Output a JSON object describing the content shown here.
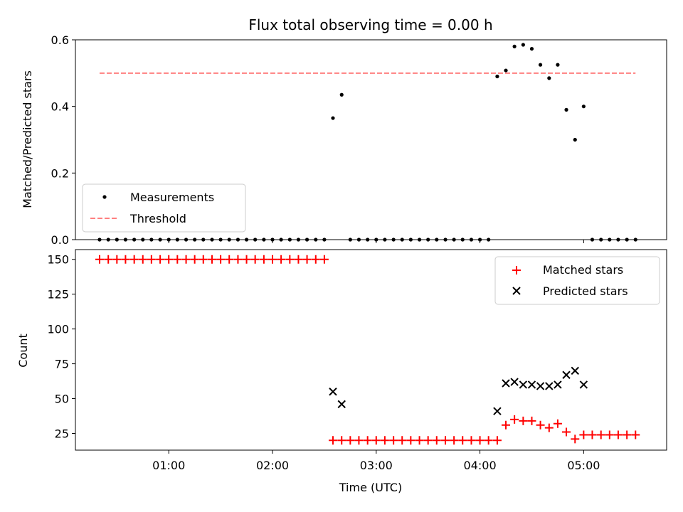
{
  "chart_data": [
    {
      "type": "scatter",
      "title": "Flux total observing time = 0.00 h",
      "xlabel": "",
      "ylabel": "Matched/Predicted stars",
      "xlim": [
        0.1,
        5.8
      ],
      "ylim": [
        0,
        0.6
      ],
      "yticks": [
        0,
        0.2,
        0.4,
        0.6
      ],
      "ytick_labels": [
        "0.0",
        "0.2",
        "0.4",
        "0.6"
      ],
      "xticks": [
        1,
        2,
        3,
        4,
        5
      ],
      "legend": {
        "position": "bottom-left"
      },
      "threshold": {
        "name": "Threshold",
        "value": 0.5,
        "x_range": [
          0.333,
          5.5
        ],
        "color": "#ff7f7f"
      },
      "series": [
        {
          "name": "Measurements",
          "color": "#000000",
          "points": [
            [
              0.333,
              0
            ],
            [
              0.417,
              0
            ],
            [
              0.5,
              0
            ],
            [
              0.583,
              0
            ],
            [
              0.667,
              0
            ],
            [
              0.75,
              0
            ],
            [
              0.833,
              0
            ],
            [
              0.917,
              0
            ],
            [
              1.0,
              0
            ],
            [
              1.083,
              0
            ],
            [
              1.167,
              0
            ],
            [
              1.25,
              0
            ],
            [
              1.333,
              0
            ],
            [
              1.417,
              0
            ],
            [
              1.5,
              0
            ],
            [
              1.583,
              0
            ],
            [
              1.667,
              0
            ],
            [
              1.75,
              0
            ],
            [
              1.833,
              0
            ],
            [
              1.917,
              0
            ],
            [
              2.0,
              0
            ],
            [
              2.083,
              0
            ],
            [
              2.167,
              0
            ],
            [
              2.25,
              0
            ],
            [
              2.333,
              0
            ],
            [
              2.417,
              0
            ],
            [
              2.5,
              0
            ],
            [
              2.583,
              0.365
            ],
            [
              2.667,
              0.435
            ],
            [
              2.75,
              0
            ],
            [
              2.833,
              0
            ],
            [
              2.917,
              0
            ],
            [
              3.0,
              0
            ],
            [
              3.083,
              0
            ],
            [
              3.167,
              0
            ],
            [
              3.25,
              0
            ],
            [
              3.333,
              0
            ],
            [
              3.417,
              0
            ],
            [
              3.5,
              0
            ],
            [
              3.583,
              0
            ],
            [
              3.667,
              0
            ],
            [
              3.75,
              0
            ],
            [
              3.833,
              0
            ],
            [
              3.917,
              0
            ],
            [
              4.0,
              0
            ],
            [
              4.083,
              0
            ],
            [
              4.167,
              0.49
            ],
            [
              4.25,
              0.508
            ],
            [
              4.333,
              0.58
            ],
            [
              4.417,
              0.585
            ],
            [
              4.5,
              0.573
            ],
            [
              4.583,
              0.525
            ],
            [
              4.667,
              0.485
            ],
            [
              4.75,
              0.525
            ],
            [
              4.833,
              0.39
            ],
            [
              4.917,
              0.3
            ],
            [
              5.0,
              0.4
            ],
            [
              5.083,
              0
            ],
            [
              5.167,
              0
            ],
            [
              5.25,
              0
            ],
            [
              5.333,
              0
            ],
            [
              5.417,
              0
            ],
            [
              5.5,
              0
            ]
          ]
        }
      ]
    },
    {
      "type": "scatter",
      "title": "",
      "xlabel": "Time (UTC)",
      "ylabel": "Count",
      "xlim": [
        0.1,
        5.8
      ],
      "ylim": [
        13,
        157
      ],
      "yticks": [
        25,
        50,
        75,
        100,
        125,
        150
      ],
      "ytick_labels": [
        "25",
        "50",
        "75",
        "100",
        "125",
        "150"
      ],
      "xticks": [
        1,
        2,
        3,
        4,
        5
      ],
      "xtick_labels": [
        "01:00",
        "02:00",
        "03:00",
        "04:00",
        "05:00"
      ],
      "legend": {
        "position": "top-right"
      },
      "series": [
        {
          "name": "Matched stars",
          "marker": "plus",
          "color": "#ff0000",
          "points": [
            [
              0.333,
              150
            ],
            [
              0.417,
              150
            ],
            [
              0.5,
              150
            ],
            [
              0.583,
              150
            ],
            [
              0.667,
              150
            ],
            [
              0.75,
              150
            ],
            [
              0.833,
              150
            ],
            [
              0.917,
              150
            ],
            [
              1.0,
              150
            ],
            [
              1.083,
              150
            ],
            [
              1.167,
              150
            ],
            [
              1.25,
              150
            ],
            [
              1.333,
              150
            ],
            [
              1.417,
              150
            ],
            [
              1.5,
              150
            ],
            [
              1.583,
              150
            ],
            [
              1.667,
              150
            ],
            [
              1.75,
              150
            ],
            [
              1.833,
              150
            ],
            [
              1.917,
              150
            ],
            [
              2.0,
              150
            ],
            [
              2.083,
              150
            ],
            [
              2.167,
              150
            ],
            [
              2.25,
              150
            ],
            [
              2.333,
              150
            ],
            [
              2.417,
              150
            ],
            [
              2.5,
              150
            ],
            [
              2.583,
              20
            ],
            [
              2.667,
              20
            ],
            [
              2.75,
              20
            ],
            [
              2.833,
              20
            ],
            [
              2.917,
              20
            ],
            [
              3.0,
              20
            ],
            [
              3.083,
              20
            ],
            [
              3.167,
              20
            ],
            [
              3.25,
              20
            ],
            [
              3.333,
              20
            ],
            [
              3.417,
              20
            ],
            [
              3.5,
              20
            ],
            [
              3.583,
              20
            ],
            [
              3.667,
              20
            ],
            [
              3.75,
              20
            ],
            [
              3.833,
              20
            ],
            [
              3.917,
              20
            ],
            [
              4.0,
              20
            ],
            [
              4.083,
              20
            ],
            [
              4.167,
              20
            ],
            [
              4.25,
              31
            ],
            [
              4.333,
              35
            ],
            [
              4.417,
              34
            ],
            [
              4.5,
              34
            ],
            [
              4.583,
              31
            ],
            [
              4.667,
              29
            ],
            [
              4.75,
              32
            ],
            [
              4.833,
              26
            ],
            [
              4.917,
              21
            ],
            [
              5.0,
              24
            ],
            [
              5.083,
              24
            ],
            [
              5.167,
              24
            ],
            [
              5.25,
              24
            ],
            [
              5.333,
              24
            ],
            [
              5.417,
              24
            ],
            [
              5.5,
              24
            ]
          ]
        },
        {
          "name": "Predicted stars",
          "marker": "x",
          "color": "#000000",
          "points": [
            [
              2.583,
              55
            ],
            [
              2.667,
              46
            ],
            [
              4.167,
              41
            ],
            [
              4.25,
              61
            ],
            [
              4.333,
              62
            ],
            [
              4.417,
              60
            ],
            [
              4.5,
              60
            ],
            [
              4.583,
              59
            ],
            [
              4.667,
              59
            ],
            [
              4.75,
              60
            ],
            [
              4.833,
              67
            ],
            [
              4.917,
              70
            ],
            [
              5.0,
              60
            ]
          ]
        }
      ]
    }
  ]
}
